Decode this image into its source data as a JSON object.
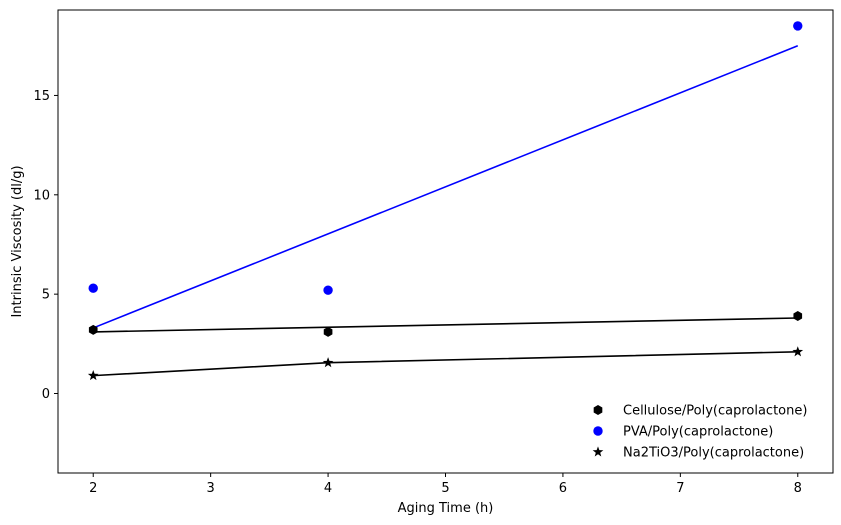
{
  "chart_data": {
    "type": "scatter",
    "title": "",
    "xlabel": "Aging Time (h)",
    "ylabel": "Intrinsic Viscosity (dl/g)",
    "xlim": [
      1.7,
      8.3
    ],
    "ylim": [
      -4,
      19.3
    ],
    "xticks": [
      2,
      3,
      4,
      5,
      6,
      7,
      8
    ],
    "yticks": [
      0,
      5,
      10,
      15
    ],
    "grid": false,
    "legend_position": "lower-right",
    "series": [
      {
        "name": "Cellulose/Poly(caprolactone)",
        "marker": "hexagon",
        "color": "#000000",
        "x": [
          2,
          4,
          8
        ],
        "y": [
          3.2,
          3.1,
          3.9
        ],
        "fit": {
          "x": [
            2,
            8
          ],
          "y": [
            3.1,
            3.8
          ],
          "color": "#000000"
        }
      },
      {
        "name": "PVA/Poly(caprolactone)",
        "marker": "circle",
        "color": "#0000ff",
        "x": [
          2,
          4,
          8
        ],
        "y": [
          5.3,
          5.2,
          18.5
        ],
        "fit": {
          "x": [
            2,
            8
          ],
          "y": [
            3.3,
            17.5
          ],
          "color": "#0000ff"
        }
      },
      {
        "name": "Na2TiO3/Poly(caprolactone)",
        "marker": "star",
        "color": "#000000",
        "x": [
          2,
          4,
          8
        ],
        "y": [
          0.9,
          1.55,
          2.1
        ],
        "fit": {
          "x": [
            2,
            4,
            8
          ],
          "y": [
            0.9,
            1.55,
            2.1
          ],
          "color": "#000000"
        }
      }
    ]
  }
}
